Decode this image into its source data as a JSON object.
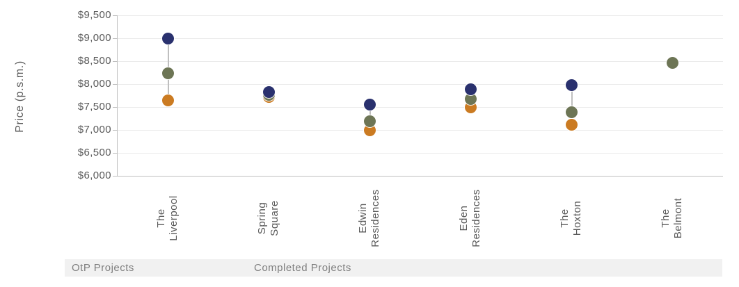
{
  "chart_data": {
    "type": "scatter",
    "title": "",
    "ylabel": "Price (p.s.m.)",
    "xlabel": "",
    "ylim": [
      6000,
      9500
    ],
    "ytick_step": 500,
    "ytick_labels": [
      "$9,500",
      "$9,000",
      "$8,500",
      "$8,000",
      "$7,500",
      "$7,000",
      "$6,500",
      "$6,000"
    ],
    "grid": true,
    "legend_position": "none",
    "categories": [
      "The Liverpool",
      "Spring Square",
      "Edwin Residences",
      "Eden Residences",
      "The Hoxton",
      "The Belmont"
    ],
    "series": [
      {
        "name": "navy-high-point",
        "color": "#2a316e",
        "values": [
          9000,
          7830,
          7550,
          7890,
          7970,
          null
        ]
      },
      {
        "name": "olive-mid-point",
        "color": "#6d7555",
        "values": [
          8240,
          7760,
          7190,
          7680,
          7380,
          8460
        ]
      },
      {
        "name": "orange-low-point",
        "color": "#cb7b22",
        "values": [
          7650,
          7720,
          7000,
          7490,
          7120,
          null
        ]
      }
    ],
    "connector_color": "#bfbfbf",
    "group_labels": [
      "OtP Projects",
      "Completed Projects"
    ]
  }
}
